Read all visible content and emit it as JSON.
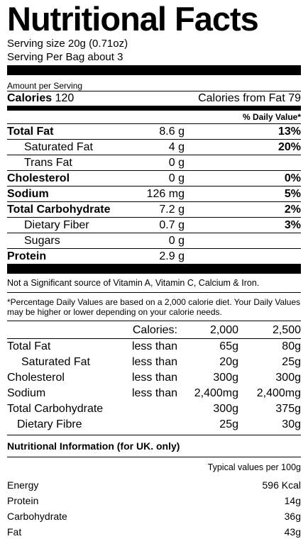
{
  "title": "Nutritional Facts",
  "serving_size": "Serving size 20g (0.71oz)",
  "servings_per": "Serving Per Bag about 3",
  "amount_per": "Amount per Serving",
  "calories": {
    "label": "Calories",
    "value": "120",
    "from_fat": "Calories from Fat 79"
  },
  "dv_header": "% Daily Value*",
  "nutrients": [
    {
      "name": "Total Fat",
      "amount": "8.6 g",
      "dv": "13%"
    },
    {
      "name": "Saturated Fat",
      "amount": "4 g",
      "dv": "20%"
    },
    {
      "name": "Trans Fat",
      "amount": "0 g",
      "dv": ""
    },
    {
      "name": "Cholesterol",
      "amount": "0 g",
      "dv": "0%"
    },
    {
      "name": "Sodium",
      "amount": "126 mg",
      "dv": "5%"
    },
    {
      "name": "Total Carbohydrate",
      "amount": "7.2 g",
      "dv": "2%"
    },
    {
      "name": "Dietary Fiber",
      "amount": "0.7 g",
      "dv": "3%"
    },
    {
      "name": "Sugars",
      "amount": "0 g",
      "dv": ""
    },
    {
      "name": "Protein",
      "amount": "2.9 g",
      "dv": ""
    }
  ],
  "vitamins_note": "Not a Significant source of Vitamin A, Vitamin C, Calcium & Iron.",
  "footnote": "*Percentage Daily Values are based on a 2,000 calorie diet. Your Daily Values may be higher or lower depending on your calorie needs.",
  "reference": {
    "header": [
      "Calories:",
      "2,000",
      "2,500"
    ],
    "rows": [
      {
        "name": "Total Fat",
        "qual": "less than",
        "v1": "65g",
        "v2": "80g"
      },
      {
        "name": "Saturated Fat",
        "qual": "less than",
        "v1": "20g",
        "v2": "25g"
      },
      {
        "name": "Cholesterol",
        "qual": "less than",
        "v1": "300g",
        "v2": "300g"
      },
      {
        "name": "Sodium",
        "qual": "less than",
        "v1": "2,400mg",
        "v2": "2,400mg"
      },
      {
        "name": "Total Carbohydrate",
        "qual": "",
        "v1": "300g",
        "v2": "375g"
      },
      {
        "name": "Dietary Fibre",
        "qual": "",
        "v1": "25g",
        "v2": "30g"
      }
    ]
  },
  "uk": {
    "title": "Nutritional Information (for UK. only)",
    "subtitle": "Typical values per 100g",
    "rows": [
      {
        "name": "Energy",
        "value": "596 Kcal"
      },
      {
        "name": "Protein",
        "value": "14g"
      },
      {
        "name": "Carbohydrate",
        "value": "36g"
      },
      {
        "name": "Fat",
        "value": "43g"
      }
    ]
  }
}
